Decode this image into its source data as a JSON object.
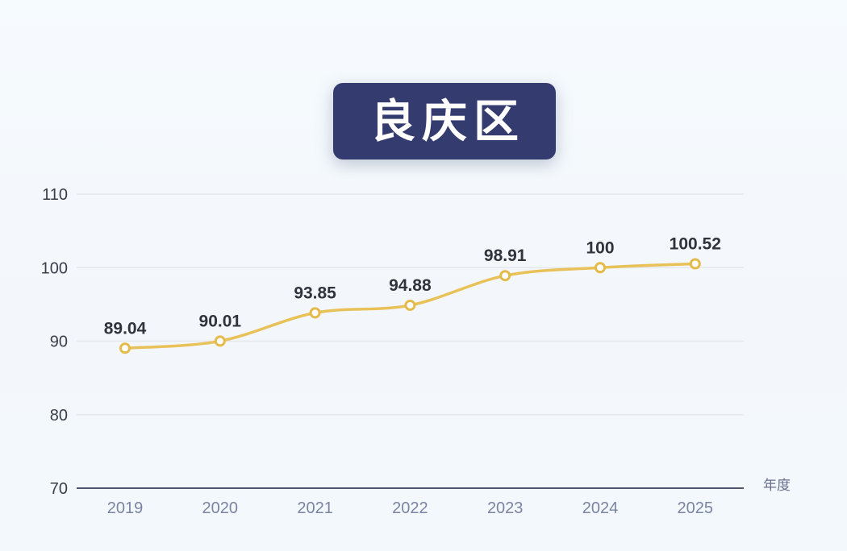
{
  "title_badge": {
    "label": "良庆区",
    "background": "#343b6f",
    "text_color": "#ffffff"
  },
  "chart_data": {
    "type": "line",
    "title": "良庆区",
    "categories": [
      "2019",
      "2020",
      "2021",
      "2022",
      "2023",
      "2024",
      "2025"
    ],
    "series": [
      {
        "name": "良庆区",
        "values": [
          89.04,
          90.01,
          93.85,
          94.88,
          98.91,
          100,
          100.52
        ]
      }
    ],
    "point_labels": [
      "89.04",
      "90.01",
      "93.85",
      "94.88",
      "98.91",
      "100",
      "100.52"
    ],
    "xlabel": "年度",
    "ylabel": "",
    "ylim": [
      70,
      110
    ],
    "yticks": [
      70,
      80,
      90,
      100,
      110
    ],
    "grid": true,
    "smooth": true,
    "legend": "none",
    "colors": {
      "line": "#e8c159",
      "marker_fill": "#ffffff",
      "marker_stroke": "#e4ba4b",
      "point_label": "#30333c",
      "ytick_label": "#3a3e48",
      "xtick_label": "#7b84a2",
      "grid_line": "#e4e7ec",
      "axis_line": "#4f556b",
      "xlabel_text": "#666e8c"
    }
  }
}
